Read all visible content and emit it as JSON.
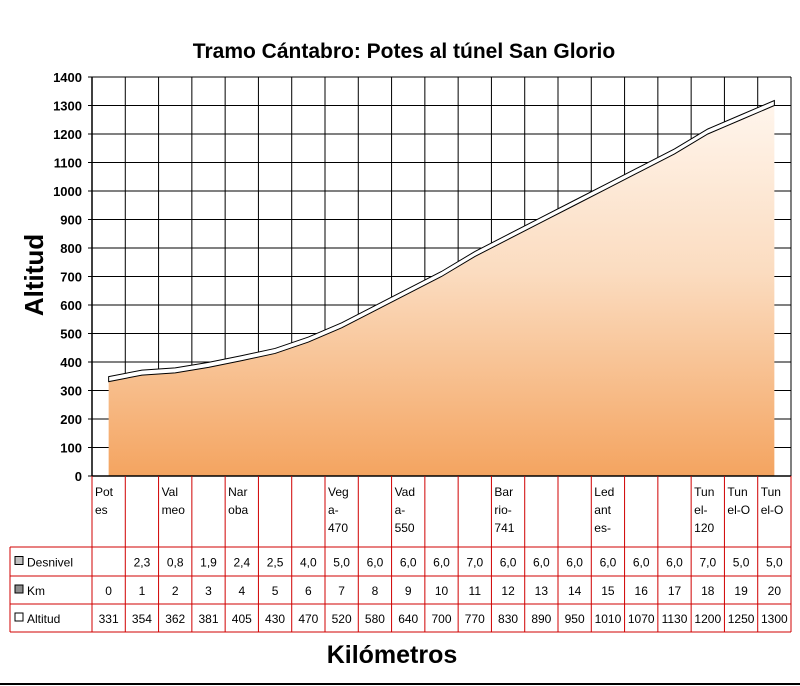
{
  "chart_data": {
    "type": "area",
    "title": "Tramo Cántabro: Potes al túnel San Glorio",
    "ylabel": "Altitud",
    "xlabel": "Kilómetros",
    "ylim": [
      0,
      1400
    ],
    "yticks": [
      "0",
      "100",
      "200",
      "300",
      "400",
      "500",
      "600",
      "700",
      "800",
      "900",
      "1000",
      "1100",
      "1200",
      "1300",
      "1400"
    ],
    "grid": true,
    "locations": [
      [
        "Pot",
        "es"
      ],
      [],
      [
        "Val",
        "meo"
      ],
      [],
      [
        "Nar",
        "oba"
      ],
      [],
      [],
      [
        "Veg",
        "a-",
        "470"
      ],
      [],
      [
        "Vad",
        "a-",
        "550"
      ],
      [],
      [],
      [
        "Bar",
        "rio-",
        "741"
      ],
      [],
      [],
      [
        "Led",
        "ant",
        "es-"
      ],
      [],
      [],
      [
        "Tun",
        "el-",
        "120"
      ],
      [
        "Tun",
        "el-O"
      ],
      [
        "Tun",
        "el-O"
      ]
    ],
    "table": {
      "rows": [
        {
          "label": "Desnivel",
          "color": "#c0c0c0",
          "values": [
            "",
            "2,3",
            "0,8",
            "1,9",
            "2,4",
            "2,5",
            "4,0",
            "5,0",
            "6,0",
            "6,0",
            "6,0",
            "7,0",
            "6,0",
            "6,0",
            "6,0",
            "6,0",
            "6,0",
            "6,0",
            "7,0",
            "5,0",
            "5,0"
          ]
        },
        {
          "label": "Km",
          "color": "#8c8c8c",
          "values": [
            "0",
            "1",
            "2",
            "3",
            "4",
            "5",
            "6",
            "7",
            "8",
            "9",
            "10",
            "11",
            "12",
            "13",
            "14",
            "15",
            "16",
            "17",
            "18",
            "19",
            "20"
          ]
        },
        {
          "label": "Altitud",
          "color": "#ffffff",
          "values": [
            "331",
            "354",
            "362",
            "381",
            "405",
            "430",
            "470",
            "520",
            "580",
            "640",
            "700",
            "770",
            "830",
            "890",
            "950",
            "1010",
            "1070",
            "1130",
            "1200",
            "1250",
            "1300"
          ]
        }
      ]
    },
    "series": [
      {
        "name": "Altitud",
        "x": [
          0,
          1,
          2,
          3,
          4,
          5,
          6,
          7,
          8,
          9,
          10,
          11,
          12,
          13,
          14,
          15,
          16,
          17,
          18,
          19,
          20
        ],
        "values": [
          331,
          354,
          362,
          381,
          405,
          430,
          470,
          520,
          580,
          640,
          700,
          770,
          830,
          890,
          950,
          1010,
          1070,
          1130,
          1200,
          1250,
          1300
        ]
      }
    ]
  }
}
